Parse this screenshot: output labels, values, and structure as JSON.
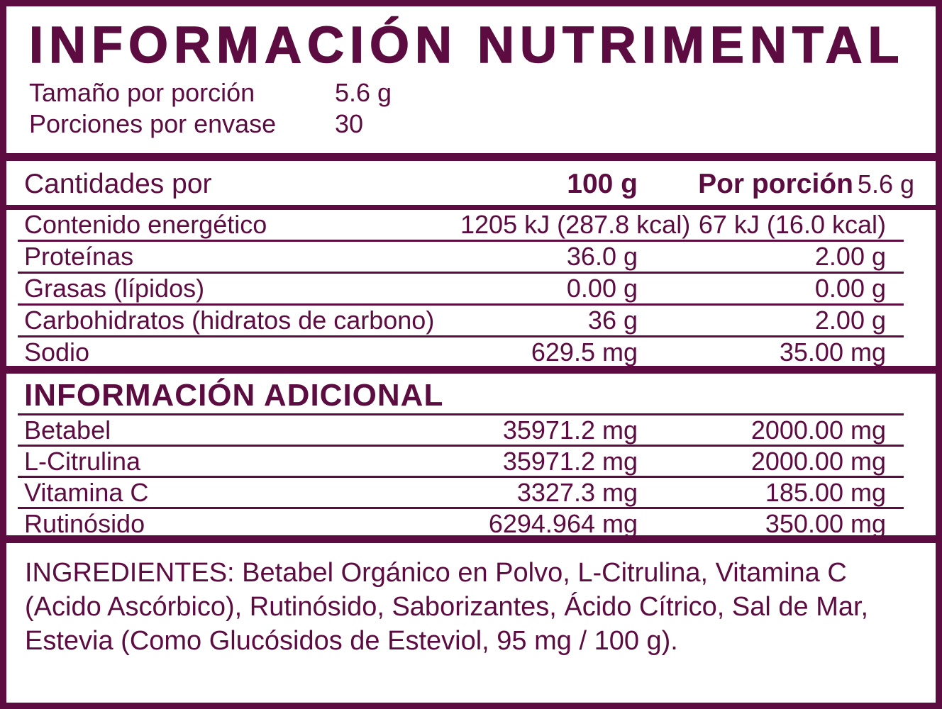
{
  "colors": {
    "brand": "#5C0C40",
    "panel_background": "#FFFFFF"
  },
  "header": {
    "title": "INFORMACIÓN NUTRIMENTAL",
    "rows": [
      {
        "label": "Tamaño por porción",
        "value": "5.6 g"
      },
      {
        "label": "Porciones por envase",
        "value": "30"
      }
    ]
  },
  "main_table": {
    "header": {
      "label": "Cantidades por",
      "col_100g": "100 g",
      "col_serving_label": "Por porción",
      "col_serving_size": "5.6 g"
    },
    "rows": [
      {
        "label": "Contenido energético",
        "per_100g": "1205 kJ (287.8 kcal)",
        "per_serving": "67 kJ (16.0 kcal)"
      },
      {
        "label": "Proteínas",
        "per_100g": "36.0 g",
        "per_serving": "2.00 g"
      },
      {
        "label": "Grasas (lípidos)",
        "per_100g": "0.00 g",
        "per_serving": "0.00 g"
      },
      {
        "label": "Carbohidratos (hidratos de carbono)",
        "per_100g": "36 g",
        "per_serving": "2.00 g"
      },
      {
        "label": "Sodio",
        "per_100g": "629.5 mg",
        "per_serving": "35.00 mg"
      }
    ]
  },
  "additional": {
    "title": "INFORMACIÓN ADICIONAL",
    "rows": [
      {
        "label": "Betabel",
        "per_100g": "35971.2 mg",
        "per_serving": "2000.00 mg"
      },
      {
        "label": "L-Citrulina",
        "per_100g": "35971.2 mg",
        "per_serving": "2000.00 mg"
      },
      {
        "label": "Vitamina C",
        "per_100g": "3327.3 mg",
        "per_serving": "185.00 mg"
      },
      {
        "label": "Rutinósido",
        "per_100g": "6294.964 mg",
        "per_serving": "350.00 mg"
      }
    ]
  },
  "ingredients": {
    "lines": [
      "INGREDIENTES: Betabel Orgánico en Polvo, L-Citrulina, Vitamina C",
      "(Acido Ascórbico), Rutinósido, Saborizantes, Ácido Cítrico, Sal de Mar,",
      "Estevia (Como Glucósidos de Esteviol, 95 mg / 100 g)."
    ]
  }
}
